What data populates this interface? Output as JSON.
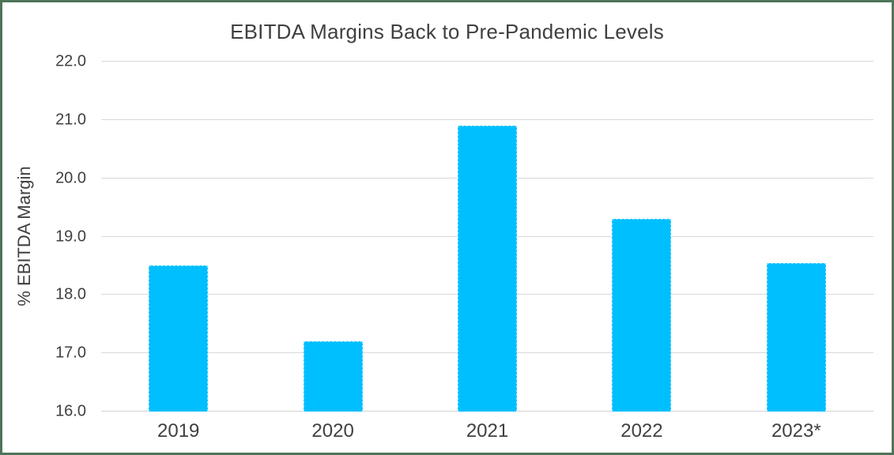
{
  "chart_data": {
    "type": "bar",
    "title": "EBITDA Margins Back to Pre-Pandemic Levels",
    "xlabel": "",
    "ylabel": "% EBITDA Margin",
    "categories": [
      "2019",
      "2020",
      "2021",
      "2022",
      "2023*"
    ],
    "values": [
      18.5,
      17.2,
      20.9,
      19.3,
      18.55
    ],
    "ylim": [
      16.0,
      22.0
    ],
    "ytick_step": 1.0,
    "ytick_labels": [
      "16.0",
      "17.0",
      "18.0",
      "19.0",
      "20.0",
      "21.0",
      "22.0"
    ],
    "grid": "horizontal",
    "legend": "none",
    "colors": {
      "bar": "#00BFFF",
      "bar_border": "#8FE4FF",
      "gridline": "#D9D9D9",
      "axis_line": "#D3D3D3",
      "text": "#404040",
      "frame_border": "#4E7459",
      "background": "#FFFFFF"
    }
  }
}
